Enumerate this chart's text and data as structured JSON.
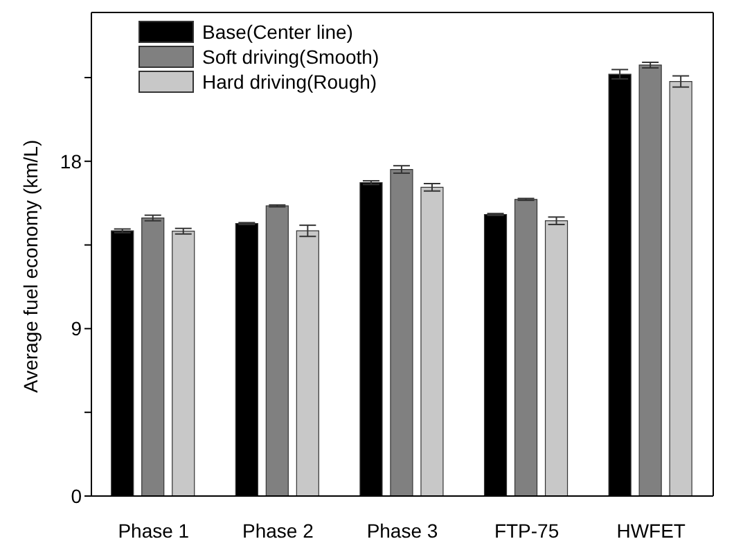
{
  "chart_data": {
    "type": "bar",
    "ylabel": "Average fuel economy (km/L)",
    "categories": [
      "Phase 1",
      "Phase 2",
      "Phase 3",
      "FTP-75",
      "HWFET"
    ],
    "series": [
      {
        "name": "Base(Center line)",
        "color": "#000000",
        "values": [
          14.26,
          14.65,
          16.85,
          15.14,
          22.68
        ],
        "errors": [
          0.1,
          0.05,
          0.1,
          0.05,
          0.25
        ]
      },
      {
        "name": "Soft driving(Smooth)",
        "color": "#808080",
        "values": [
          14.95,
          15.6,
          17.56,
          15.95,
          23.17
        ],
        "errors": [
          0.15,
          0.05,
          0.2,
          0.05,
          0.15
        ]
      },
      {
        "name": "Hard driving(Rough)",
        "color": "#c8c8c8",
        "values": [
          14.24,
          14.26,
          16.6,
          14.8,
          22.29
        ],
        "errors": [
          0.15,
          0.3,
          0.2,
          0.2,
          0.3
        ]
      }
    ],
    "ylim": [
      0,
      26
    ],
    "yticks": [
      0,
      {
        "value": 4.5,
        "label": null
      },
      9,
      {
        "value": 13.5,
        "label": null
      },
      18,
      {
        "value": 22.5,
        "label": null
      }
    ],
    "legend": "top left",
    "grid": false
  }
}
